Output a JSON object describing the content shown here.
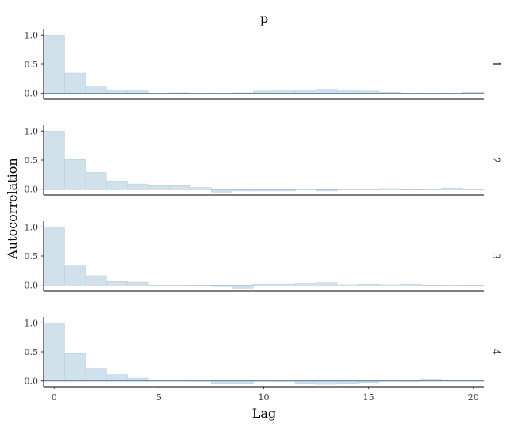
{
  "chart_data": {
    "type": "bar",
    "title": "p",
    "xlabel": "Lag",
    "ylabel": "Autocorrelation",
    "xlim": [
      -0.5,
      20.5
    ],
    "ylim": [
      -0.1,
      1.1
    ],
    "xticks": [
      0,
      5,
      10,
      15,
      20
    ],
    "yticks": [
      0.0,
      0.5,
      1.0
    ],
    "ytick_labels": [
      "0.0",
      "0.5",
      "1.0"
    ],
    "lags": [
      0,
      1,
      2,
      3,
      4,
      5,
      6,
      7,
      8,
      9,
      10,
      11,
      12,
      13,
      14,
      15,
      16,
      17,
      18,
      19,
      20
    ],
    "zero_line_color": "#5d7fa0",
    "bar_color": "#d1e1ec",
    "panels": [
      {
        "chain": "1",
        "values": [
          1.0,
          0.35,
          0.11,
          0.05,
          0.06,
          0.0,
          0.01,
          0.0,
          0.0,
          0.01,
          0.04,
          0.06,
          0.05,
          0.07,
          0.05,
          0.04,
          0.02,
          0.0,
          -0.01,
          0.0,
          0.02
        ]
      },
      {
        "chain": "2",
        "values": [
          1.0,
          0.51,
          0.29,
          0.14,
          0.09,
          0.06,
          0.06,
          0.03,
          -0.05,
          -0.03,
          -0.03,
          -0.03,
          0.0,
          -0.03,
          0.0,
          0.0,
          0.01,
          -0.01,
          0.0,
          0.02,
          0.0
        ]
      },
      {
        "chain": "3",
        "values": [
          1.0,
          0.34,
          0.16,
          0.06,
          0.05,
          0.0,
          0.0,
          -0.01,
          -0.02,
          -0.05,
          0.02,
          0.02,
          0.03,
          0.04,
          0.01,
          0.02,
          0.01,
          0.02,
          -0.01,
          0.0,
          -0.01
        ]
      },
      {
        "chain": "4",
        "values": [
          1.0,
          0.47,
          0.22,
          0.11,
          0.05,
          0.02,
          0.01,
          0.0,
          -0.04,
          -0.04,
          0.0,
          -0.01,
          -0.04,
          -0.06,
          -0.04,
          -0.03,
          0.0,
          -0.01,
          0.03,
          0.01,
          0.02
        ]
      }
    ]
  }
}
